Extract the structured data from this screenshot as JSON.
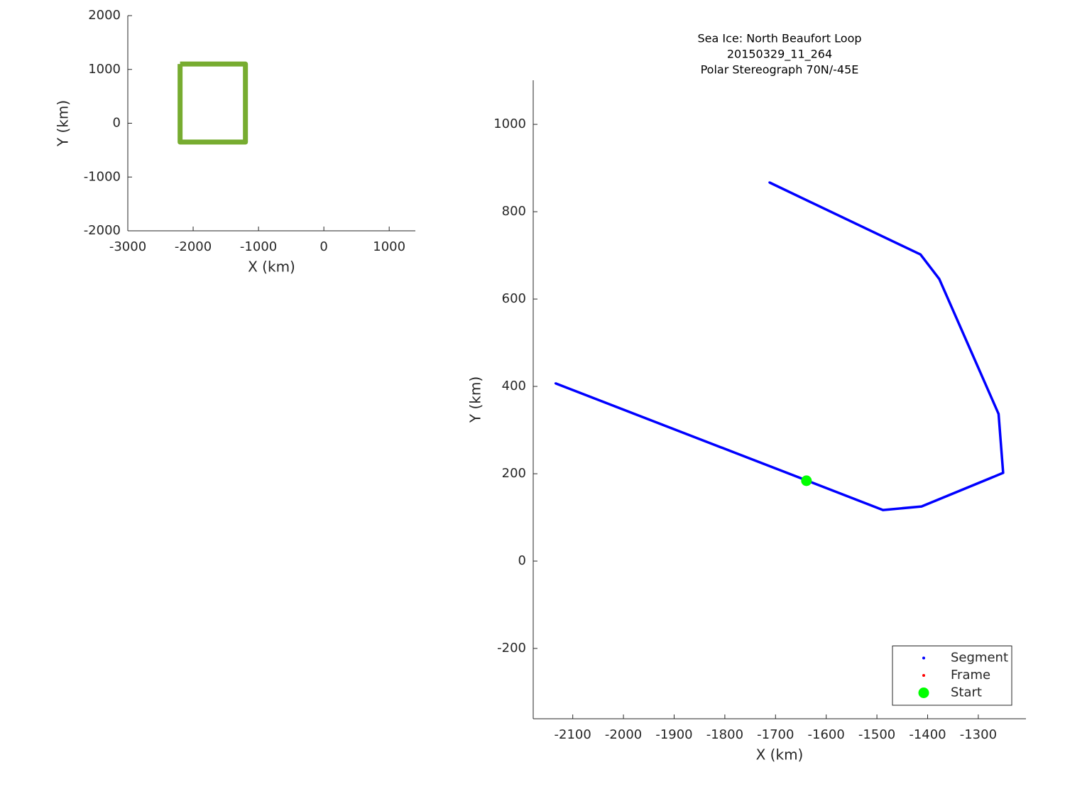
{
  "chart_data": [
    {
      "type": "line",
      "xlabel": "X (km)",
      "ylabel": "Y (km)",
      "xlim": [
        -3000,
        1400
      ],
      "ylim": [
        -2000,
        2000
      ],
      "xticks": [
        -3000,
        -2000,
        -1000,
        0,
        1000
      ],
      "yticks": [
        -2000,
        -1000,
        0,
        1000,
        2000
      ],
      "series": [
        {
          "color": "#77ac30",
          "line": true,
          "marker": "none",
          "x": [
            -2200,
            -1200,
            -1200,
            -2200,
            -2200
          ],
          "values": [
            1100,
            1100,
            -350,
            -350,
            1100
          ]
        }
      ]
    },
    {
      "type": "line",
      "title": [
        "Sea Ice: North Beaufort Loop",
        "20150329_11_264",
        "Polar Stereograph 70N/-45E"
      ],
      "xlabel": "X (km)",
      "ylabel": "Y (km)",
      "xlim": [
        -2178,
        -1206
      ],
      "ylim": [
        -361,
        1101
      ],
      "xticks": [
        -2100,
        -2000,
        -1900,
        -1800,
        -1700,
        -1600,
        -1500,
        -1400,
        -1300
      ],
      "yticks": [
        -200,
        0,
        200,
        400,
        600,
        800,
        1000
      ],
      "legend": "lower right",
      "series": [
        {
          "name": "Segment",
          "color": "#0000ff",
          "line": true,
          "marker": "dot",
          "x": [
            -1712,
            -1414,
            -1377,
            -1260,
            -1251,
            -1412,
            -1488,
            -2134
          ],
          "values": [
            867,
            702,
            646,
            337,
            202,
            125,
            117,
            407
          ]
        },
        {
          "name": "Frame",
          "color": "#ff0000",
          "line": false,
          "marker": "dot",
          "x": [],
          "values": []
        },
        {
          "name": "Start",
          "color": "#00ff00",
          "line": false,
          "marker": "asterisk",
          "x": [
            -1639
          ],
          "values": [
            184
          ]
        }
      ]
    }
  ]
}
